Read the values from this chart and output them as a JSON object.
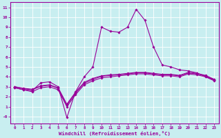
{
  "xlabel": "Windchill (Refroidissement éolien,°C)",
  "bg_color": "#c8eef0",
  "line_color": "#990099",
  "ylim": [
    -0.7,
    11.5
  ],
  "xlim": [
    -0.5,
    23.5
  ],
  "yticks": [
    0,
    1,
    2,
    3,
    4,
    5,
    6,
    7,
    8,
    9,
    10,
    11
  ],
  "ytick_labels": [
    "-0",
    "1",
    "2",
    "3",
    "4",
    "5",
    "6",
    "7",
    "8",
    "9",
    "10",
    "11"
  ],
  "xticks": [
    0,
    1,
    2,
    3,
    4,
    5,
    6,
    7,
    8,
    9,
    10,
    11,
    12,
    13,
    14,
    15,
    16,
    17,
    18,
    19,
    20,
    21,
    22,
    23
  ],
  "line1_x": [
    0,
    1,
    2,
    3,
    4,
    5,
    6,
    7,
    8,
    9,
    10,
    11,
    12,
    13,
    14,
    15,
    16,
    17,
    18,
    19,
    20,
    21,
    22,
    23
  ],
  "line1_y": [
    2.9,
    2.7,
    2.6,
    3.4,
    3.5,
    3.0,
    -0.1,
    2.5,
    4.0,
    5.0,
    9.0,
    8.6,
    8.5,
    9.0,
    10.8,
    9.7,
    7.0,
    5.2,
    5.0,
    4.7,
    4.6,
    4.4,
    4.0,
    3.7
  ],
  "line2_x": [
    0,
    1,
    2,
    3,
    4,
    5,
    6,
    7,
    8,
    9,
    10,
    11,
    12,
    13,
    14,
    15,
    16,
    17,
    18,
    19,
    20,
    21,
    22,
    23
  ],
  "line2_y": [
    2.9,
    2.7,
    2.5,
    2.9,
    3.0,
    2.7,
    1.0,
    2.2,
    3.2,
    3.6,
    3.9,
    4.0,
    4.1,
    4.2,
    4.3,
    4.3,
    4.2,
    4.1,
    4.1,
    4.0,
    4.3,
    4.2,
    4.0,
    3.6
  ],
  "line3_x": [
    0,
    1,
    2,
    3,
    4,
    5,
    6,
    7,
    8,
    9,
    10,
    11,
    12,
    13,
    14,
    15,
    16,
    17,
    18,
    19,
    20,
    21,
    22,
    23
  ],
  "line3_y": [
    3.0,
    2.8,
    2.7,
    3.05,
    3.15,
    2.85,
    1.15,
    2.35,
    3.35,
    3.75,
    4.05,
    4.15,
    4.2,
    4.3,
    4.4,
    4.4,
    4.3,
    4.2,
    4.2,
    4.1,
    4.4,
    4.3,
    4.1,
    3.7
  ],
  "line4_x": [
    0,
    1,
    2,
    3,
    4,
    5,
    6,
    7,
    8,
    9,
    10,
    11,
    12,
    13,
    14,
    15,
    16,
    17,
    18,
    19,
    20,
    21,
    22,
    23
  ],
  "line4_y": [
    3.0,
    2.85,
    2.75,
    3.1,
    3.2,
    2.9,
    1.25,
    2.45,
    3.45,
    3.85,
    4.1,
    4.2,
    4.25,
    4.35,
    4.45,
    4.45,
    4.35,
    4.25,
    4.25,
    4.15,
    4.45,
    4.35,
    4.15,
    3.75
  ]
}
